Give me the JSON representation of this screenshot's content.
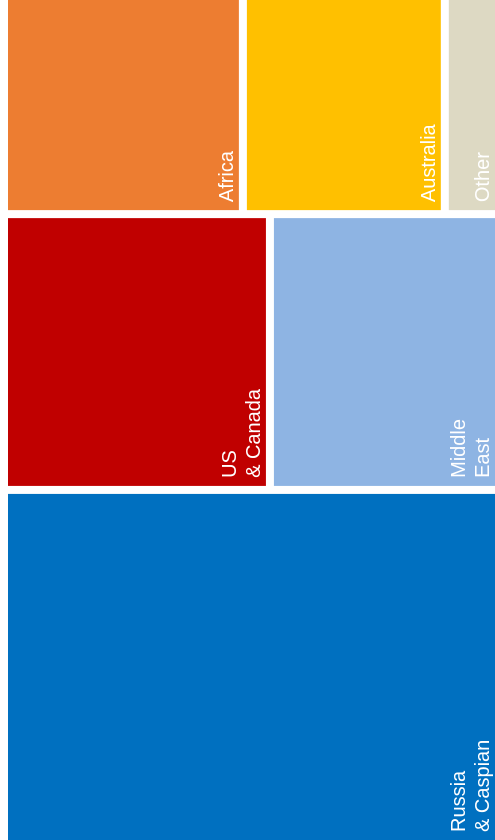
{
  "chart_data": {
    "type": "treemap",
    "labels": [
      [
        "Russia",
        "& Caspian"
      ],
      [
        "US",
        "& Canada"
      ],
      [
        "Middle",
        "East"
      ],
      [
        "Africa"
      ],
      [
        "Australia"
      ],
      [
        "Other"
      ]
    ],
    "values": [
      42,
      17.5,
      15,
      12.5,
      10.5,
      2.5
    ],
    "colors": [
      "#0070C0",
      "#C00000",
      "#8EB4E3",
      "#ED7D31",
      "#FFC000",
      "#DDD9C3"
    ],
    "label_color": "#FFFFFF"
  }
}
